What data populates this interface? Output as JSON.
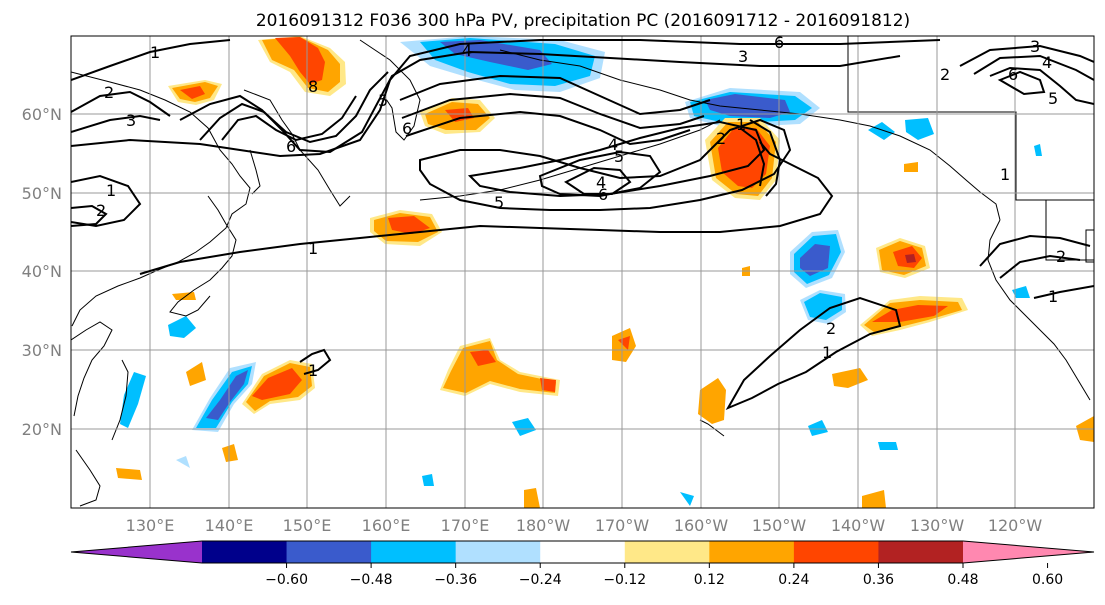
{
  "title": "2016091312 F036 300 hPa PV, precipitation PC (2016091712 - 2016091812)",
  "lat_labels": [
    "60°N",
    "50°N",
    "40°N",
    "30°N",
    "20°N"
  ],
  "lon_labels": [
    "130°E",
    "140°E",
    "150°E",
    "160°E",
    "170°E",
    "180°W",
    "170°W",
    "160°W",
    "150°W",
    "140°W",
    "130°W",
    "120°W"
  ],
  "colorbar": {
    "colors": [
      "#9932cc",
      "#00008b",
      "#3a5bcc",
      "#00bfff",
      "#b0e0ff",
      "#ffffff",
      "#ffe888",
      "#ffa500",
      "#ff4500",
      "#b22222",
      "#ff88b0"
    ],
    "tick_labels": [
      "−0.60",
      "−0.48",
      "−0.36",
      "−0.24",
      "−0.12",
      "0.12",
      "0.24",
      "0.36",
      "0.48",
      "0.60"
    ]
  },
  "contour_labels": [
    "1",
    "2",
    "3",
    "6",
    "8",
    "4",
    "5",
    "6",
    "4",
    "5",
    "6",
    "3",
    "4",
    "5",
    "6",
    "1",
    "2",
    "1",
    "2",
    "1",
    "2",
    "3",
    "6",
    "5",
    "1",
    "4",
    "2",
    "1",
    "2",
    "1",
    "1"
  ]
}
